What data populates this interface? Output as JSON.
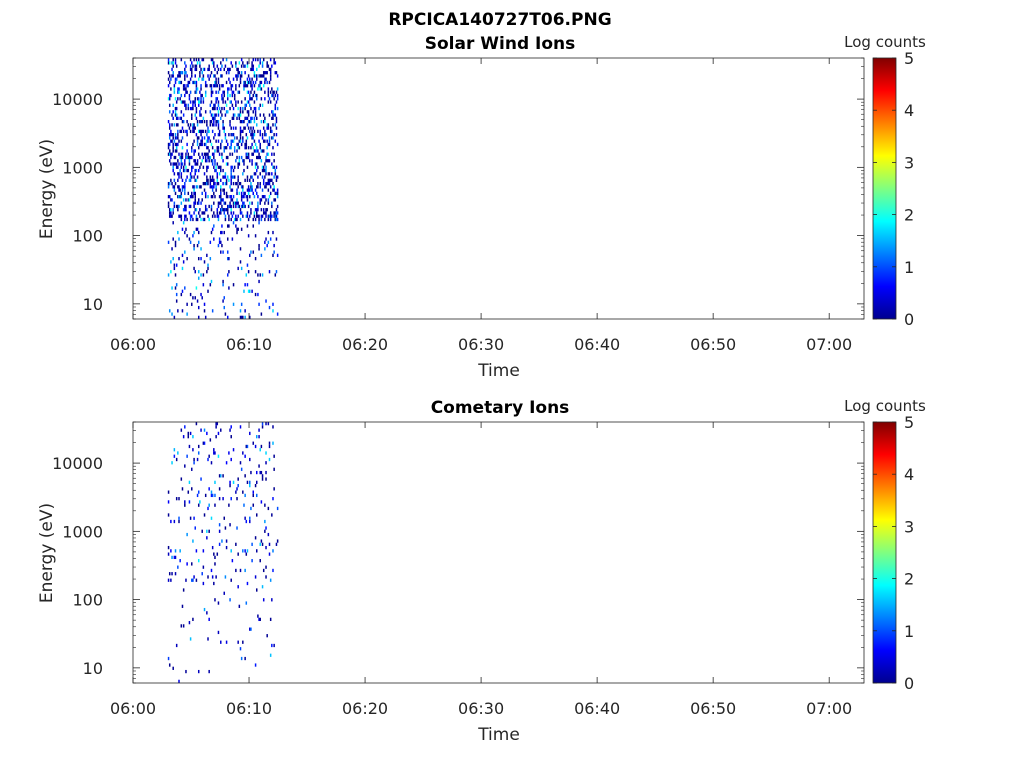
{
  "figure": {
    "title": "RPCICA140727T06.PNG"
  },
  "colors": {
    "axis": "#262626",
    "background": "#ffffff",
    "colormap": [
      "#00008f",
      "#0000ff",
      "#0080ff",
      "#00ffff",
      "#80ff80",
      "#ffff00",
      "#ff8000",
      "#ff0000",
      "#800000"
    ]
  },
  "chart_data": [
    {
      "type": "heatmap",
      "title": "Solar Wind Ions",
      "xlabel": "Time",
      "ylabel": "Energy (eV)",
      "x_ticks": [
        "06:00",
        "06:10",
        "06:20",
        "06:30",
        "06:40",
        "06:50",
        "07:00"
      ],
      "y_ticks": [
        "10",
        "100",
        "1000",
        "10000"
      ],
      "y_scale": "log",
      "xlim": [
        "06:00",
        "07:03"
      ],
      "ylim": [
        6,
        40000
      ],
      "colorbar": {
        "label": "Log counts",
        "ticks": [
          "0",
          "1",
          "2",
          "3",
          "4",
          "5"
        ],
        "range": [
          0,
          5
        ]
      },
      "grid": false,
      "data_time_range": [
        "06:03",
        "06:12:30"
      ],
      "density": 0.55,
      "max_value": 2.0,
      "seed": 17
    },
    {
      "type": "heatmap",
      "title": "Cometary Ions",
      "xlabel": "Time",
      "ylabel": "Energy (eV)",
      "x_ticks": [
        "06:00",
        "06:10",
        "06:20",
        "06:30",
        "06:40",
        "06:50",
        "07:00"
      ],
      "y_ticks": [
        "10",
        "100",
        "1000",
        "10000"
      ],
      "y_scale": "log",
      "xlim": [
        "06:00",
        "07:03"
      ],
      "ylim": [
        6,
        40000
      ],
      "colorbar": {
        "label": "Log counts",
        "ticks": [
          "0",
          "1",
          "2",
          "3",
          "4",
          "5"
        ],
        "range": [
          0,
          5
        ]
      },
      "grid": false,
      "data_time_range": [
        "06:03",
        "06:12:30"
      ],
      "density": 0.12,
      "max_value": 1.8,
      "seed": 91
    }
  ]
}
